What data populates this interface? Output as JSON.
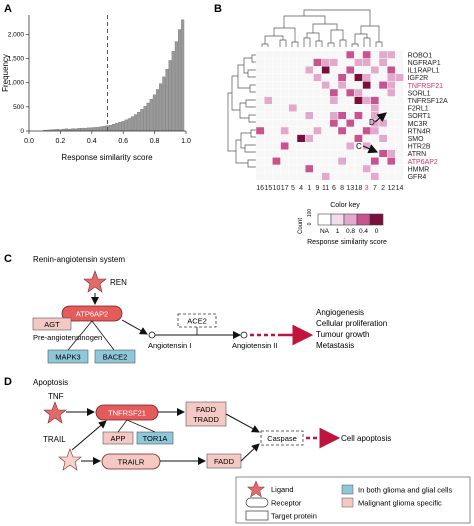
{
  "panels": {
    "a": "A",
    "b": "B",
    "c": "C",
    "d": "D"
  },
  "chart_data": [
    {
      "type": "bar",
      "title": "",
      "xlabel": "Response similarity score",
      "ylabel": "Frequency",
      "xlim": [
        0,
        1.0
      ],
      "ylim": [
        0,
        2400
      ],
      "x_ticks": [
        "0.0",
        "0.2",
        "0.4",
        "0.6",
        "0.8",
        "1.0"
      ],
      "y_ticks": [
        "0",
        "500",
        "1,000",
        "1,500",
        "2,000"
      ],
      "threshold_line": 0.5,
      "bins_x": [
        0.1,
        0.12,
        0.14,
        0.16,
        0.18,
        0.2,
        0.22,
        0.24,
        0.26,
        0.28,
        0.3,
        0.32,
        0.34,
        0.36,
        0.38,
        0.4,
        0.42,
        0.44,
        0.46,
        0.48,
        0.5,
        0.52,
        0.54,
        0.56,
        0.58,
        0.6,
        0.62,
        0.64,
        0.66,
        0.68,
        0.7,
        0.72,
        0.74,
        0.76,
        0.78,
        0.8,
        0.82,
        0.84,
        0.86,
        0.88,
        0.9,
        0.92,
        0.94,
        0.96,
        0.98
      ],
      "values": [
        15,
        20,
        25,
        30,
        35,
        30,
        40,
        45,
        40,
        50,
        45,
        55,
        60,
        60,
        65,
        70,
        75,
        80,
        90,
        100,
        110,
        120,
        140,
        160,
        180,
        200,
        230,
        260,
        300,
        340,
        390,
        450,
        510,
        580,
        660,
        750,
        860,
        980,
        1120,
        1280,
        1460,
        1650,
        1850,
        2100,
        2300
      ]
    },
    {
      "type": "heatmap",
      "row_labels": [
        "ROBO1",
        "NGFRAP1",
        "IL1RAPL1",
        "IGF2R",
        "TNFRSF21",
        "SORL1",
        "TNFRSF12A",
        "F2RL1",
        "SORT1",
        "MC3R",
        "RTN4R",
        "SMO",
        "HTR2B",
        "ATRN",
        "ATP6AP2",
        "HMMR",
        "GFR4"
      ],
      "row_label_colors": [
        "#222222",
        "#222222",
        "#222222",
        "#222222",
        "#d6336c",
        "#222222",
        "#222222",
        "#222222",
        "#222222",
        "#222222",
        "#222222",
        "#222222",
        "#222222",
        "#222222",
        "#d6336c",
        "#222222",
        "#222222"
      ],
      "col_labels": [
        "16",
        "15",
        "10",
        "17",
        "5",
        "4",
        "1",
        "9",
        "11",
        "6",
        "8",
        "13",
        "18",
        "3",
        "7",
        "2",
        "12",
        "14"
      ],
      "col_label_colors": [
        "#222222",
        "#222222",
        "#222222",
        "#222222",
        "#222222",
        "#222222",
        "#222222",
        "#222222",
        "#222222",
        "#222222",
        "#222222",
        "#222222",
        "#222222",
        "#d6336c",
        "#222222",
        "#222222",
        "#222222",
        "#222222"
      ],
      "matrix": [
        [
          0,
          0,
          0,
          0,
          0,
          0,
          0,
          0,
          0,
          0,
          0,
          2,
          0,
          2,
          0,
          1,
          1,
          0
        ],
        [
          0,
          0,
          0,
          0,
          0,
          0,
          0,
          2,
          1,
          1,
          0,
          0,
          1,
          1,
          0,
          1,
          0,
          0
        ],
        [
          0,
          0,
          0,
          0,
          0,
          0,
          1,
          0,
          3,
          0,
          0,
          2,
          0,
          0,
          1,
          0,
          2,
          0
        ],
        [
          0,
          0,
          0,
          0,
          0,
          0,
          0,
          1,
          0,
          0,
          2,
          0,
          3,
          1,
          0,
          0,
          1,
          1
        ],
        [
          0,
          0,
          0,
          0,
          0,
          0,
          0,
          0,
          1,
          0,
          1,
          0,
          0,
          3,
          0,
          2,
          1,
          0
        ],
        [
          0,
          0,
          0,
          0,
          0,
          0,
          0,
          0,
          0,
          2,
          0,
          2,
          1,
          0,
          0,
          0,
          1,
          0
        ],
        [
          0,
          1,
          0,
          0,
          0,
          0,
          0,
          0,
          0,
          1,
          0,
          0,
          3,
          1,
          2,
          0,
          0,
          0
        ],
        [
          0,
          0,
          0,
          0,
          1,
          0,
          0,
          0,
          0,
          0,
          0,
          0,
          0,
          0,
          1,
          0,
          0,
          0
        ],
        [
          0,
          0,
          0,
          0,
          0,
          0,
          1,
          0,
          0,
          1,
          2,
          0,
          2,
          0,
          1,
          0,
          0,
          0
        ],
        [
          0,
          0,
          0,
          0,
          0,
          0,
          0,
          0,
          0,
          2,
          0,
          2,
          0,
          0,
          1,
          1,
          0,
          0
        ],
        [
          2,
          0,
          0,
          1,
          0,
          0,
          0,
          1,
          0,
          0,
          2,
          0,
          0,
          2,
          1,
          0,
          0,
          0
        ],
        [
          0,
          0,
          0,
          0,
          0,
          3,
          1,
          0,
          0,
          0,
          0,
          0,
          2,
          0,
          0,
          1,
          0,
          0
        ],
        [
          0,
          0,
          0,
          2,
          0,
          0,
          0,
          0,
          0,
          0,
          0,
          1,
          0,
          1,
          0,
          0,
          0,
          0
        ],
        [
          0,
          0,
          0,
          0,
          0,
          0,
          0,
          0,
          0,
          0,
          0,
          0,
          0,
          0,
          0,
          2,
          1,
          0
        ],
        [
          0,
          0,
          2,
          0,
          0,
          0,
          0,
          0,
          0,
          0,
          1,
          0,
          0,
          0,
          2,
          0,
          2,
          0
        ],
        [
          0,
          0,
          0,
          0,
          0,
          0,
          2,
          0,
          0,
          0,
          0,
          0,
          0,
          1,
          0,
          0,
          0,
          0
        ],
        [
          0,
          0,
          0,
          0,
          0,
          0,
          0,
          0,
          1,
          0,
          0,
          0,
          0,
          0,
          1,
          0,
          0,
          0
        ]
      ],
      "color_key": {
        "title": "Color key",
        "count_label": "Count",
        "count_ticks": [
          "0",
          "100"
        ],
        "tick_labels": [
          "NA",
          "1",
          "0.8",
          "0.4",
          "0"
        ],
        "xlabel": "Response similarity score",
        "colors": [
          "#ffffff",
          "#f1dceb",
          "#e3a9cd",
          "#c8538f",
          "#7a0f3e"
        ]
      },
      "annotations": [
        "D",
        "C"
      ]
    }
  ],
  "pathway_c": {
    "title": "Renin-angiotensin system",
    "ren": "REN",
    "atp6ap2": "ATP6AP2",
    "agt": "AGT",
    "pre_angiotensinogen": "Pre-angiotensinogen",
    "mapk3": "MAPK3",
    "bace2": "BACE2",
    "ace2": "ACE2",
    "angiotensin1": "Angiotensin I",
    "angiotensin2": "Angiotensin II",
    "outcomes": [
      "Angiogenesis",
      "Cellular proliferation",
      "Tumour growth",
      "Metastasis"
    ]
  },
  "pathway_d": {
    "title": "Apoptosis",
    "tnf": "TNF",
    "trail": "TRAIL",
    "tnfrsf21": "TNFRSF21",
    "app": "APP",
    "tor1a": "TOR1A",
    "trailr": "TRAILR",
    "fadd_tradd_1": "FADD",
    "fadd_tradd_2": "TRADD",
    "fadd": "FADD",
    "caspase": "Caspase",
    "outcome": "Cell apoptosis"
  },
  "legend": {
    "ligand": "Ligand",
    "receptor": "Receptor",
    "target_protein": "Target protein",
    "both": "In both glioma and glial cells",
    "malignant": "Malignant glioma specific"
  },
  "colors": {
    "histogram_bar": "#9a9a9a",
    "ligand": "#e06b6b",
    "receptor_red": "#e45b5b",
    "malignant": "#f4c9c3",
    "both": "#8dc7d9",
    "highlight": "#d6336c",
    "arrow_red": "#c0143c"
  }
}
